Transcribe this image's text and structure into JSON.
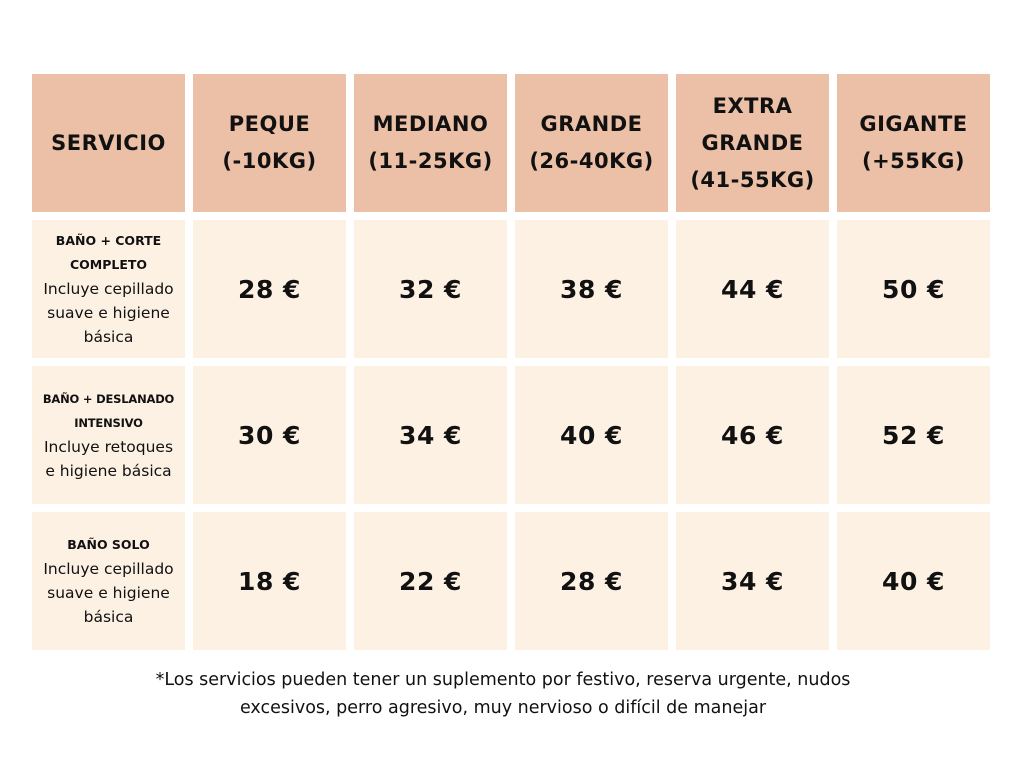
{
  "table": {
    "header": [
      {
        "lines": [
          "SERVICIO"
        ]
      },
      {
        "lines": [
          "PEQUE",
          "(-10KG)"
        ]
      },
      {
        "lines": [
          "MEDIANO",
          "(11-25KG)"
        ]
      },
      {
        "lines": [
          "GRANDE",
          "(26-40KG)"
        ]
      },
      {
        "lines": [
          "EXTRA",
          "GRANDE",
          "(41-55KG)"
        ]
      },
      {
        "lines": [
          "GIGANTE",
          "(+55KG)"
        ]
      }
    ],
    "rows": [
      {
        "name_lines": [
          "BAÑO + CORTE",
          "COMPLETO"
        ],
        "desc_lines": [
          "Incluye cepillado",
          "suave e higiene",
          "básica"
        ],
        "prices": [
          "28 €",
          "32 €",
          "38 €",
          "44 €",
          "50 €"
        ]
      },
      {
        "name_lines": [
          "BAÑO + DESLANADO",
          "INTENSIVO"
        ],
        "desc_lines": [
          "Incluye retoques",
          "e higiene básica"
        ],
        "prices": [
          "30 €",
          "34 €",
          "40 €",
          "46 €",
          "52 €"
        ]
      },
      {
        "name_lines": [
          "BAÑO SOLO"
        ],
        "desc_lines": [
          "Incluye cepillado",
          "suave e higiene",
          "básica"
        ],
        "prices": [
          "18 €",
          "22 €",
          "28 €",
          "34 €",
          "40 €"
        ]
      }
    ]
  },
  "footnote": {
    "lines": [
      "*Los servicios pueden tener un suplemento por festivo, reserva urgente,  nudos",
      "excesivos, perro agresivo, muy nervioso o difícil de manejar"
    ]
  },
  "colors": {
    "header_bg": "#ecbfa7",
    "body_bg": "#fdf1e3",
    "text": "#111111"
  }
}
